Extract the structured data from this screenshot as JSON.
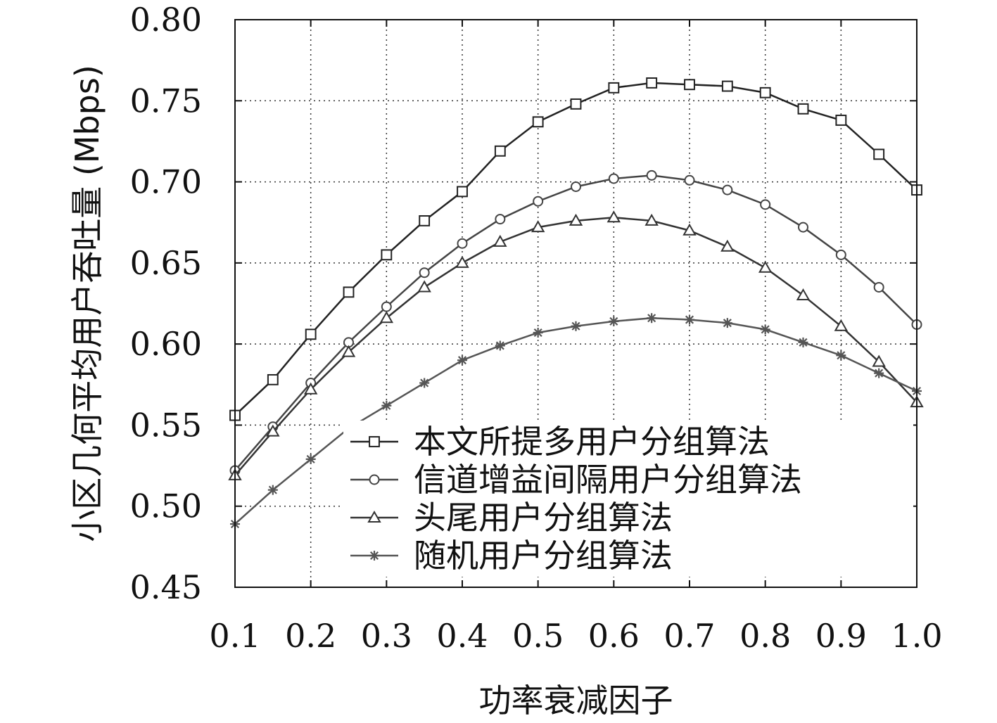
{
  "chart_data": {
    "type": "line",
    "title": "",
    "xlabel": "功率衰减因子",
    "ylabel": "小区几何平均用户吞吐量 (Mbps)",
    "xlim": [
      0.1,
      1.0
    ],
    "ylim": [
      0.45,
      0.8
    ],
    "xticks": [
      "0.1",
      "0.2",
      "0.3",
      "0.4",
      "0.5",
      "0.6",
      "0.7",
      "0.8",
      "0.9",
      "1.0"
    ],
    "yticks": [
      "0.45",
      "0.50",
      "0.55",
      "0.60",
      "0.65",
      "0.70",
      "0.75",
      "0.80"
    ],
    "grid": true,
    "legend_position": "bottom-right",
    "x": [
      0.1,
      0.15,
      0.2,
      0.25,
      0.3,
      0.35,
      0.4,
      0.45,
      0.5,
      0.55,
      0.6,
      0.65,
      0.7,
      0.75,
      0.8,
      0.85,
      0.9,
      0.95,
      1.0
    ],
    "series": [
      {
        "name": "本文所提多用户分组算法",
        "marker": "square",
        "color": "#222222",
        "values": [
          0.556,
          0.578,
          0.606,
          0.632,
          0.655,
          0.676,
          0.694,
          0.719,
          0.737,
          0.748,
          0.758,
          0.761,
          0.76,
          0.759,
          0.755,
          0.745,
          0.738,
          0.717,
          0.695
        ]
      },
      {
        "name": "信道增益间隔用户分组算法",
        "marker": "circle",
        "color": "#444444",
        "values": [
          0.522,
          0.549,
          0.576,
          0.601,
          0.623,
          0.644,
          0.662,
          0.677,
          0.688,
          0.697,
          0.702,
          0.704,
          0.701,
          0.695,
          0.686,
          0.672,
          0.655,
          0.635,
          0.612
        ]
      },
      {
        "name": "头尾用户分组算法",
        "marker": "triangle",
        "color": "#333333",
        "values": [
          0.519,
          0.546,
          0.572,
          0.595,
          0.616,
          0.635,
          0.65,
          0.663,
          0.672,
          0.676,
          0.678,
          0.676,
          0.67,
          0.66,
          0.647,
          0.63,
          0.611,
          0.589,
          0.564
        ]
      },
      {
        "name": "随机用户分组算法",
        "marker": "star",
        "color": "#555555",
        "values": [
          0.489,
          0.51,
          0.529,
          0.548,
          0.562,
          0.576,
          0.59,
          0.599,
          0.607,
          0.611,
          0.614,
          0.616,
          0.615,
          0.613,
          0.609,
          0.601,
          0.593,
          0.582,
          0.571
        ]
      }
    ]
  }
}
